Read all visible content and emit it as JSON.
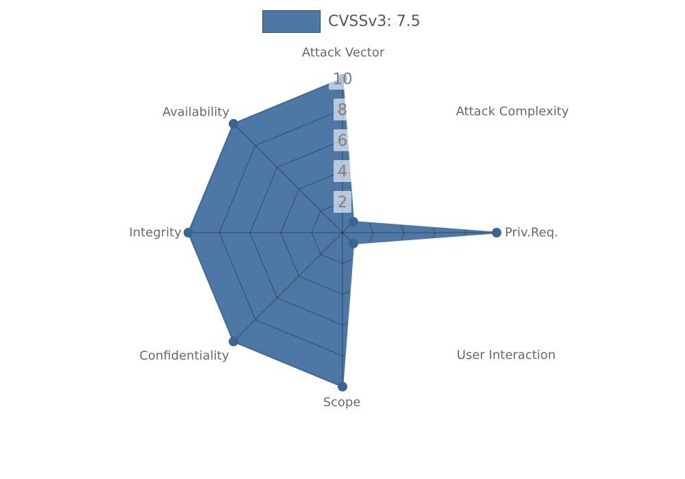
{
  "legend": {
    "label": "CVSSv3: 7.5",
    "swatch_color": "#4d78a6"
  },
  "chart_data": {
    "type": "radar",
    "title": "",
    "legend_position": "top-center",
    "axes": [
      "Attack Vector",
      "Attack Complexity",
      "Priv.Req.",
      "User Interaction",
      "Scope",
      "Confidentiality",
      "Integrity",
      "Availability"
    ],
    "series": [
      {
        "name": "CVSSv3: 7.5",
        "values": [
          10,
          1,
          10,
          1,
          10,
          10,
          10,
          10
        ]
      }
    ],
    "rlim": [
      0,
      10
    ],
    "ticks": [
      2,
      4,
      6,
      8,
      10
    ],
    "grid": true,
    "grid_visible_only_inside_fill": true,
    "colors": {
      "fill": "#4d78a6",
      "stroke": "#4d78a6",
      "marker": "#3c6493",
      "grid_line": "rgba(0,0,0,0.27)",
      "tick_text": "#808080",
      "tick_box": "rgba(255,255,255,0.60)",
      "axis_label_text": "#696969"
    }
  }
}
